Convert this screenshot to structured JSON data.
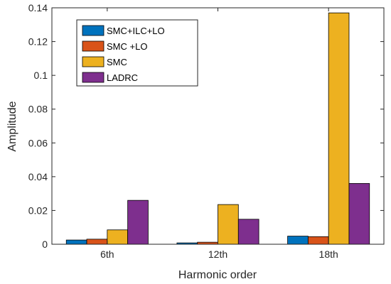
{
  "chart_data": {
    "type": "bar",
    "categories": [
      "6th",
      "12th",
      "18th"
    ],
    "series": [
      {
        "name": "SMC+ILC+LO",
        "values": [
          0.0025,
          0.0008,
          0.0048
        ],
        "color": "#0072BD"
      },
      {
        "name": "SMC +LO",
        "values": [
          0.003,
          0.0012,
          0.0045
        ],
        "color": "#D95319"
      },
      {
        "name": "SMC",
        "values": [
          0.0085,
          0.0235,
          0.137
        ],
        "color": "#EDB120"
      },
      {
        "name": "LADRC",
        "values": [
          0.026,
          0.0148,
          0.036
        ],
        "color": "#7E2F8E"
      }
    ],
    "title": "",
    "xlabel": "Harmonic order",
    "ylabel": "Amplitude",
    "ylim": [
      0,
      0.14
    ],
    "yticks": [
      0,
      0.02,
      0.04,
      0.06,
      0.08,
      0.1,
      0.12,
      0.14
    ],
    "ytick_labels": [
      "0",
      "0.02",
      "0.04",
      "0.06",
      "0.08",
      "0.1",
      "0.12",
      "0.14"
    ],
    "grid": false,
    "legend_position": "top-left"
  }
}
